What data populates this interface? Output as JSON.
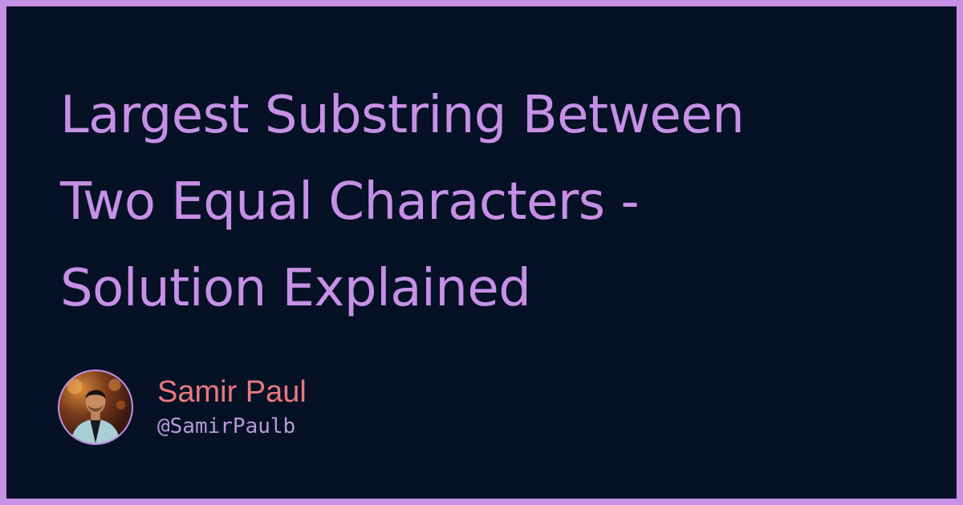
{
  "title": {
    "line1": "Largest Substring Between",
    "line2": "Two Equal Characters -",
    "line3": "Solution Explained"
  },
  "author": {
    "name": "Samir Paul",
    "handle": "@SamirPaulb",
    "avatar_icon": "author-avatar-photo"
  },
  "colors": {
    "border": "#c690e6",
    "background": "#061126",
    "title": "#c690e6",
    "name": "#e8797c",
    "handle": "#b79ad9"
  }
}
